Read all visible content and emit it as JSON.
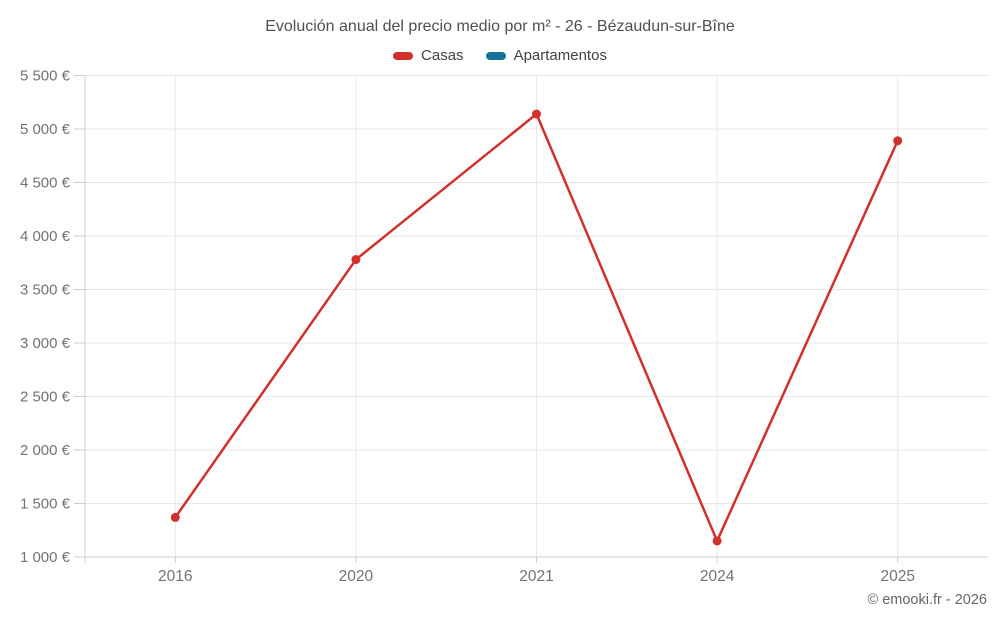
{
  "header": {
    "title": "Evolución anual del precio medio por m² - 26 - Bézaudun-sur-Bîne"
  },
  "legend": {
    "items": [
      {
        "label": "Casas",
        "color": "#d2302c"
      },
      {
        "label": "Apartamentos",
        "color": "#156f9f"
      }
    ]
  },
  "footer": {
    "credit": "© emooki.fr - 2026"
  },
  "chart_data": {
    "type": "line",
    "title": "Evolución anual del precio medio por m² - 26 - Bézaudun-sur-Bîne",
    "categories": [
      "2016",
      "2020",
      "2021",
      "2024",
      "2025"
    ],
    "series": [
      {
        "name": "Casas",
        "color": "#d2302c",
        "values": [
          1370,
          3780,
          5140,
          1150,
          4890
        ]
      },
      {
        "name": "Apartamentos",
        "color": "#156f9f",
        "values": []
      }
    ],
    "xlabel": "",
    "ylabel": "",
    "ylim": [
      1000,
      5500
    ],
    "ytick_step": 500,
    "ytick_suffix": " €",
    "grid": true,
    "legend_position": "top",
    "credit": "© emooki.fr - 2026"
  },
  "style": {
    "grid_color": "#e8e8e8",
    "axis_color": "#cfcfcf",
    "tick_label_color": "#737373",
    "title_color": "#4f4f4f",
    "legend_text_color": "#424242",
    "credit_color": "#666666"
  }
}
